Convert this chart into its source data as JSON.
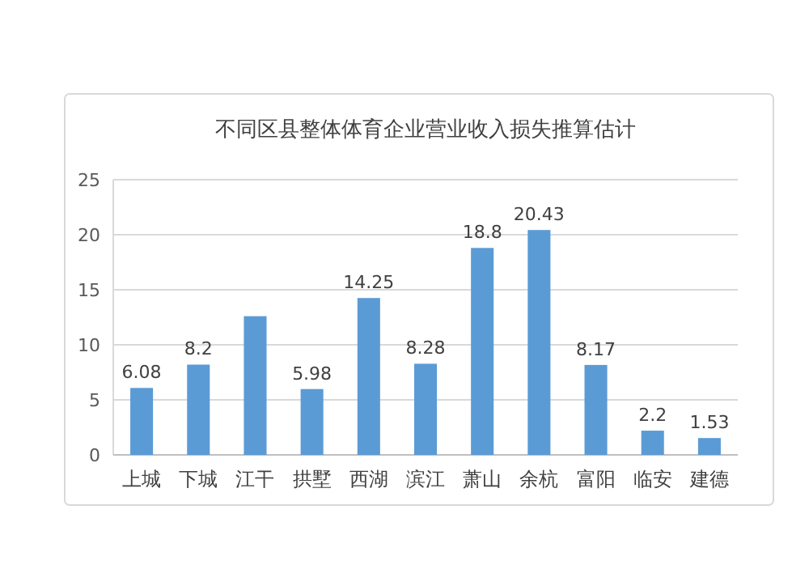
{
  "chart_data": {
    "type": "bar",
    "title": "不同区县整体体育企业营业收入损失推算估计",
    "categories": [
      "上城",
      "下城",
      "江干",
      "拱墅",
      "西湖",
      "滨江",
      "萧山",
      "余杭",
      "富阳",
      "临安",
      "建德"
    ],
    "values": [
      6.08,
      8.2,
      12.6,
      5.98,
      14.25,
      8.28,
      18.8,
      20.43,
      8.17,
      2.2,
      1.53
    ],
    "value_labels": [
      "6.08",
      "8.2",
      null,
      "5.98",
      "14.25",
      "8.28",
      "18.8",
      "20.43",
      "8.17",
      "2.2",
      "1.53"
    ],
    "color": "#5b9bd5",
    "ylim": [
      0,
      25
    ],
    "yticks": [
      0,
      5,
      10,
      15,
      20,
      25
    ],
    "grid": "y"
  }
}
